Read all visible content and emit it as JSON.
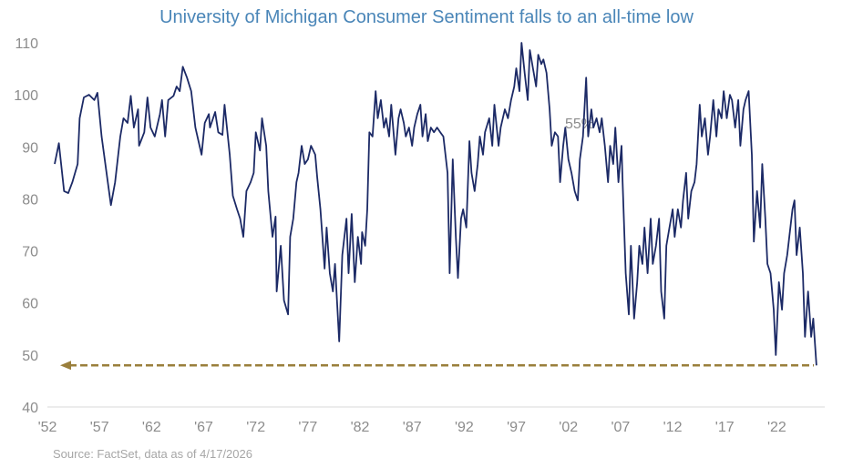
{
  "chart_data": {
    "type": "line",
    "title": "University of Michigan Consumer Sentiment falls to an all-time low",
    "source": "Source: FactSet, data as of 4/17/2026",
    "annotation": "55%",
    "xlim": [
      1952,
      2026.6
    ],
    "ylim": [
      40,
      110
    ],
    "y_ticks": [
      40,
      50,
      60,
      70,
      80,
      90,
      100,
      110
    ],
    "x_ticks": [
      {
        "year": 1952,
        "label": "'52"
      },
      {
        "year": 1957,
        "label": "'57"
      },
      {
        "year": 1962,
        "label": "'62"
      },
      {
        "year": 1967,
        "label": "'67"
      },
      {
        "year": 1972,
        "label": "'72"
      },
      {
        "year": 1977,
        "label": "'77"
      },
      {
        "year": 1982,
        "label": "'82"
      },
      {
        "year": 1987,
        "label": "'87"
      },
      {
        "year": 1992,
        "label": "'92"
      },
      {
        "year": 1997,
        "label": "'97"
      },
      {
        "year": 2002,
        "label": "'02"
      },
      {
        "year": 2007,
        "label": "'07"
      },
      {
        "year": 2012,
        "label": "'12"
      },
      {
        "year": 2017,
        "label": "'17"
      },
      {
        "year": 2022,
        "label": "'22"
      }
    ],
    "grid": false,
    "legend": "none",
    "reference_line": {
      "value": 48,
      "style": "dashed-arrow-left"
    },
    "colors": {
      "line": "#1c2a66",
      "reference": "#9a7f3c",
      "title": "#4a86b8",
      "axis_text": "#8c8c8c",
      "source": "#a6a6a6"
    },
    "series": [
      {
        "points": [
          [
            1952.7,
            86.7
          ],
          [
            1953.1,
            90.7
          ],
          [
            1953.6,
            81.5
          ],
          [
            1954.0,
            81.1
          ],
          [
            1954.4,
            83.2
          ],
          [
            1954.9,
            86.7
          ],
          [
            1955.1,
            95.5
          ],
          [
            1955.5,
            99.5
          ],
          [
            1956.0,
            100.0
          ],
          [
            1956.5,
            99.0
          ],
          [
            1956.8,
            100.4
          ],
          [
            1957.2,
            92.0
          ],
          [
            1957.8,
            83.2
          ],
          [
            1958.1,
            78.8
          ],
          [
            1958.5,
            83.2
          ],
          [
            1959.0,
            92.0
          ],
          [
            1959.3,
            95.5
          ],
          [
            1959.7,
            94.6
          ],
          [
            1960.0,
            99.8
          ],
          [
            1960.3,
            93.7
          ],
          [
            1960.7,
            97.2
          ],
          [
            1960.8,
            90.2
          ],
          [
            1961.3,
            92.8
          ],
          [
            1961.6,
            99.5
          ],
          [
            1961.9,
            93.7
          ],
          [
            1962.3,
            92.0
          ],
          [
            1962.8,
            96.3
          ],
          [
            1963.0,
            99.0
          ],
          [
            1963.3,
            92.0
          ],
          [
            1963.6,
            99.0
          ],
          [
            1964.1,
            99.8
          ],
          [
            1964.4,
            101.6
          ],
          [
            1964.7,
            100.7
          ],
          [
            1965.0,
            105.4
          ],
          [
            1965.4,
            103.3
          ],
          [
            1965.8,
            100.7
          ],
          [
            1966.2,
            93.7
          ],
          [
            1966.8,
            88.5
          ],
          [
            1967.1,
            94.6
          ],
          [
            1967.5,
            96.3
          ],
          [
            1967.6,
            93.7
          ],
          [
            1968.1,
            96.7
          ],
          [
            1968.4,
            92.8
          ],
          [
            1968.8,
            92.3
          ],
          [
            1969.0,
            98.1
          ],
          [
            1969.5,
            88.5
          ],
          [
            1969.8,
            80.6
          ],
          [
            1970.2,
            78.0
          ],
          [
            1970.5,
            76.2
          ],
          [
            1970.8,
            72.7
          ],
          [
            1971.1,
            81.5
          ],
          [
            1971.5,
            83.2
          ],
          [
            1971.8,
            85.0
          ],
          [
            1972.0,
            92.8
          ],
          [
            1972.4,
            89.3
          ],
          [
            1972.6,
            95.5
          ],
          [
            1973.0,
            90.2
          ],
          [
            1973.2,
            81.5
          ],
          [
            1973.6,
            72.7
          ],
          [
            1973.9,
            76.6
          ],
          [
            1974.0,
            62.2
          ],
          [
            1974.4,
            71.0
          ],
          [
            1974.7,
            60.5
          ],
          [
            1975.1,
            57.8
          ],
          [
            1975.3,
            72.7
          ],
          [
            1975.6,
            76.2
          ],
          [
            1975.9,
            83.2
          ],
          [
            1976.1,
            85.0
          ],
          [
            1976.4,
            90.2
          ],
          [
            1976.7,
            86.7
          ],
          [
            1977.0,
            87.6
          ],
          [
            1977.3,
            90.2
          ],
          [
            1977.7,
            88.5
          ],
          [
            1977.9,
            84.1
          ],
          [
            1978.2,
            78.0
          ],
          [
            1978.6,
            66.6
          ],
          [
            1978.8,
            74.5
          ],
          [
            1979.1,
            65.7
          ],
          [
            1979.4,
            62.2
          ],
          [
            1979.6,
            67.5
          ],
          [
            1980.0,
            52.6
          ],
          [
            1980.3,
            69.2
          ],
          [
            1980.7,
            76.2
          ],
          [
            1980.9,
            65.7
          ],
          [
            1981.2,
            77.1
          ],
          [
            1981.5,
            64.0
          ],
          [
            1981.8,
            72.7
          ],
          [
            1982.1,
            67.5
          ],
          [
            1982.2,
            73.6
          ],
          [
            1982.5,
            71.0
          ],
          [
            1982.7,
            78.0
          ],
          [
            1982.9,
            92.8
          ],
          [
            1983.2,
            92.0
          ],
          [
            1983.5,
            100.7
          ],
          [
            1983.7,
            95.5
          ],
          [
            1984.0,
            99.0
          ],
          [
            1984.3,
            93.7
          ],
          [
            1984.5,
            95.5
          ],
          [
            1984.8,
            92.0
          ],
          [
            1985.0,
            98.1
          ],
          [
            1985.4,
            88.5
          ],
          [
            1985.7,
            95.5
          ],
          [
            1985.9,
            97.2
          ],
          [
            1986.2,
            94.6
          ],
          [
            1986.4,
            92.0
          ],
          [
            1986.7,
            93.7
          ],
          [
            1987.0,
            90.2
          ],
          [
            1987.2,
            93.7
          ],
          [
            1987.5,
            96.3
          ],
          [
            1987.8,
            98.1
          ],
          [
            1988.0,
            92.0
          ],
          [
            1988.3,
            96.3
          ],
          [
            1988.5,
            91.1
          ],
          [
            1988.8,
            93.7
          ],
          [
            1989.1,
            92.8
          ],
          [
            1989.4,
            93.7
          ],
          [
            1989.7,
            92.8
          ],
          [
            1990.0,
            92.0
          ],
          [
            1990.4,
            85.0
          ],
          [
            1990.6,
            65.7
          ],
          [
            1990.9,
            87.6
          ],
          [
            1991.2,
            72.7
          ],
          [
            1991.4,
            64.8
          ],
          [
            1991.7,
            76.2
          ],
          [
            1991.9,
            78.0
          ],
          [
            1992.2,
            74.5
          ],
          [
            1992.5,
            91.1
          ],
          [
            1992.7,
            85.0
          ],
          [
            1993.0,
            81.5
          ],
          [
            1993.3,
            86.7
          ],
          [
            1993.5,
            92.0
          ],
          [
            1993.8,
            88.5
          ],
          [
            1994.0,
            92.8
          ],
          [
            1994.4,
            95.5
          ],
          [
            1994.7,
            90.2
          ],
          [
            1994.9,
            98.1
          ],
          [
            1995.3,
            90.2
          ],
          [
            1995.5,
            93.7
          ],
          [
            1995.9,
            97.2
          ],
          [
            1996.2,
            95.5
          ],
          [
            1996.5,
            99.0
          ],
          [
            1996.8,
            101.6
          ],
          [
            1997.0,
            105.1
          ],
          [
            1997.3,
            100.7
          ],
          [
            1997.5,
            110.0
          ],
          [
            1997.8,
            104.2
          ],
          [
            1998.1,
            99.0
          ],
          [
            1998.3,
            108.6
          ],
          [
            1998.6,
            105.1
          ],
          [
            1998.9,
            101.6
          ],
          [
            1999.1,
            107.7
          ],
          [
            1999.4,
            105.9
          ],
          [
            1999.6,
            106.8
          ],
          [
            1999.9,
            104.2
          ],
          [
            2000.2,
            97.2
          ],
          [
            2000.4,
            90.2
          ],
          [
            2000.7,
            92.8
          ],
          [
            2001.0,
            92.0
          ],
          [
            2001.2,
            83.2
          ],
          [
            2001.5,
            90.2
          ],
          [
            2001.7,
            93.7
          ],
          [
            2002.0,
            87.6
          ],
          [
            2002.3,
            85.0
          ],
          [
            2002.6,
            81.5
          ],
          [
            2002.9,
            79.7
          ],
          [
            2003.1,
            87.6
          ],
          [
            2003.4,
            92.0
          ],
          [
            2003.7,
            103.3
          ],
          [
            2003.9,
            92.0
          ],
          [
            2004.2,
            97.2
          ],
          [
            2004.4,
            93.7
          ],
          [
            2004.7,
            95.5
          ],
          [
            2005.0,
            92.8
          ],
          [
            2005.2,
            95.5
          ],
          [
            2005.5,
            90.2
          ],
          [
            2005.8,
            83.2
          ],
          [
            2006.0,
            90.2
          ],
          [
            2006.3,
            86.7
          ],
          [
            2006.5,
            93.7
          ],
          [
            2006.8,
            83.2
          ],
          [
            2007.1,
            90.2
          ],
          [
            2007.2,
            83.2
          ],
          [
            2007.5,
            65.7
          ],
          [
            2007.8,
            57.8
          ],
          [
            2008.0,
            71.0
          ],
          [
            2008.3,
            57.0
          ],
          [
            2008.6,
            64.0
          ],
          [
            2008.8,
            71.0
          ],
          [
            2009.1,
            67.5
          ],
          [
            2009.3,
            74.5
          ],
          [
            2009.6,
            65.7
          ],
          [
            2009.9,
            76.2
          ],
          [
            2010.1,
            67.5
          ],
          [
            2010.4,
            71.0
          ],
          [
            2010.7,
            76.2
          ],
          [
            2010.9,
            62.2
          ],
          [
            2011.2,
            57.0
          ],
          [
            2011.4,
            71.0
          ],
          [
            2011.7,
            74.5
          ],
          [
            2012.0,
            78.0
          ],
          [
            2012.2,
            72.7
          ],
          [
            2012.5,
            78.0
          ],
          [
            2012.8,
            74.5
          ],
          [
            2013.0,
            79.7
          ],
          [
            2013.3,
            85.0
          ],
          [
            2013.5,
            76.2
          ],
          [
            2013.8,
            81.5
          ],
          [
            2014.1,
            83.2
          ],
          [
            2014.3,
            86.7
          ],
          [
            2014.6,
            98.1
          ],
          [
            2014.8,
            92.0
          ],
          [
            2015.1,
            95.5
          ],
          [
            2015.4,
            88.5
          ],
          [
            2015.6,
            92.0
          ],
          [
            2015.9,
            99.0
          ],
          [
            2016.2,
            92.0
          ],
          [
            2016.4,
            97.2
          ],
          [
            2016.7,
            95.5
          ],
          [
            2016.9,
            100.7
          ],
          [
            2017.2,
            95.5
          ],
          [
            2017.5,
            100.0
          ],
          [
            2017.7,
            99.0
          ],
          [
            2018.0,
            93.7
          ],
          [
            2018.3,
            99.0
          ],
          [
            2018.5,
            90.2
          ],
          [
            2018.8,
            97.2
          ],
          [
            2019.0,
            99.0
          ],
          [
            2019.3,
            100.7
          ],
          [
            2019.6,
            88.5
          ],
          [
            2019.8,
            71.8
          ],
          [
            2020.1,
            81.5
          ],
          [
            2020.4,
            74.5
          ],
          [
            2020.6,
            86.7
          ],
          [
            2020.9,
            76.2
          ],
          [
            2021.1,
            67.5
          ],
          [
            2021.4,
            65.7
          ],
          [
            2021.7,
            58.7
          ],
          [
            2021.9,
            50.0
          ],
          [
            2022.2,
            64.0
          ],
          [
            2022.5,
            58.7
          ],
          [
            2022.7,
            65.7
          ],
          [
            2023.0,
            69.2
          ],
          [
            2023.2,
            72.7
          ],
          [
            2023.5,
            78.0
          ],
          [
            2023.7,
            79.7
          ],
          [
            2023.9,
            69.2
          ],
          [
            2024.2,
            74.5
          ],
          [
            2024.5,
            65.7
          ],
          [
            2024.7,
            53.5
          ],
          [
            2025.0,
            62.2
          ],
          [
            2025.3,
            53.5
          ],
          [
            2025.5,
            57.0
          ],
          [
            2025.8,
            48.0
          ]
        ]
      }
    ]
  }
}
